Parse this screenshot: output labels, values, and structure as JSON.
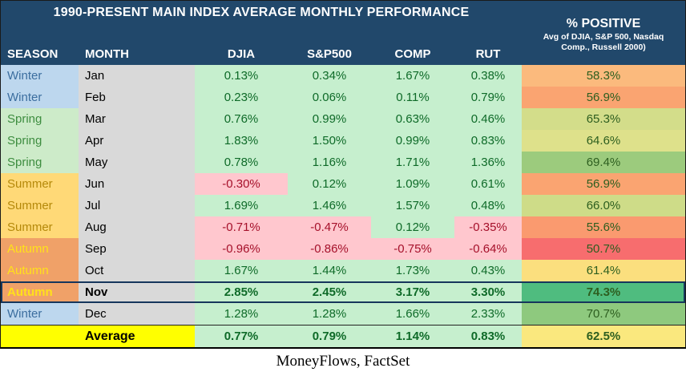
{
  "header": {
    "title": "1990-PRESENT MAIN INDEX AVERAGE MONTHLY PERFORMANCE",
    "columns": [
      "SEASON",
      "MONTH",
      "DJIA",
      "S&P500",
      "COMP",
      "RUT"
    ],
    "pct_title": "% POSITIVE",
    "pct_sub1": "Avg of DJIA, S&P 500, Nasdaq",
    "pct_sub2": "Comp., Russell 2000)"
  },
  "colors": {
    "header_bg": "#21486B",
    "winter_bg": "#BDD7EE",
    "winter_text": "#3C6E9F",
    "spring_bg": "#CDEBC9",
    "spring_text": "#3E8D40",
    "summer_bg": "#FFD977",
    "summer_text": "#B5890A",
    "autumn_bg": "#F0A168",
    "autumn_text": "#FFE11A",
    "month_bg": "#D9D9D9",
    "pos_bg": "#C6EFCE",
    "pos_text": "#0E6A28",
    "neg_bg": "#FFC7CE",
    "neg_text": "#A5102A",
    "pct_text": "#2D5E1F",
    "average_bg": "#FFFF00",
    "highlight_border": "#16365C"
  },
  "rows": [
    {
      "season": "Winter",
      "season_class": "winter",
      "month": "Jan",
      "values": [
        {
          "t": "0.13%",
          "neg": false
        },
        {
          "t": "0.34%",
          "neg": false
        },
        {
          "t": "1.67%",
          "neg": false
        },
        {
          "t": "0.38%",
          "neg": false
        }
      ],
      "pct": "58.3%",
      "pct_bg": "#FBBA7D",
      "bold": false,
      "highlight": false,
      "is_average": false
    },
    {
      "season": "Winter",
      "season_class": "winter",
      "month": "Feb",
      "values": [
        {
          "t": "0.23%",
          "neg": false
        },
        {
          "t": "0.06%",
          "neg": false
        },
        {
          "t": "0.11%",
          "neg": false
        },
        {
          "t": "0.79%",
          "neg": false
        }
      ],
      "pct": "56.9%",
      "pct_bg": "#FAA471",
      "bold": false,
      "highlight": false,
      "is_average": false
    },
    {
      "season": "Spring",
      "season_class": "spring",
      "month": "Mar",
      "values": [
        {
          "t": "0.76%",
          "neg": false
        },
        {
          "t": "0.99%",
          "neg": false
        },
        {
          "t": "0.63%",
          "neg": false
        },
        {
          "t": "0.46%",
          "neg": false
        }
      ],
      "pct": "65.3%",
      "pct_bg": "#D3DD8A",
      "bold": false,
      "highlight": false,
      "is_average": false
    },
    {
      "season": "Spring",
      "season_class": "spring",
      "month": "Apr",
      "values": [
        {
          "t": "1.83%",
          "neg": false
        },
        {
          "t": "1.50%",
          "neg": false
        },
        {
          "t": "0.99%",
          "neg": false
        },
        {
          "t": "0.83%",
          "neg": false
        }
      ],
      "pct": "64.6%",
      "pct_bg": "#DEE18B",
      "bold": false,
      "highlight": false,
      "is_average": false
    },
    {
      "season": "Spring",
      "season_class": "spring",
      "month": "May",
      "values": [
        {
          "t": "0.78%",
          "neg": false
        },
        {
          "t": "1.16%",
          "neg": false
        },
        {
          "t": "1.71%",
          "neg": false
        },
        {
          "t": "1.36%",
          "neg": false
        }
      ],
      "pct": "69.4%",
      "pct_bg": "#9CCB7D",
      "bold": false,
      "highlight": false,
      "is_average": false
    },
    {
      "season": "Summer",
      "season_class": "summer",
      "month": "Jun",
      "values": [
        {
          "t": "-0.30%",
          "neg": true
        },
        {
          "t": "0.12%",
          "neg": false
        },
        {
          "t": "1.09%",
          "neg": false
        },
        {
          "t": "0.61%",
          "neg": false
        }
      ],
      "pct": "56.9%",
      "pct_bg": "#FAA471",
      "bold": false,
      "highlight": false,
      "is_average": false
    },
    {
      "season": "Summer",
      "season_class": "summer",
      "month": "Jul",
      "values": [
        {
          "t": "1.69%",
          "neg": false
        },
        {
          "t": "1.46%",
          "neg": false
        },
        {
          "t": "1.57%",
          "neg": false
        },
        {
          "t": "0.48%",
          "neg": false
        }
      ],
      "pct": "66.0%",
      "pct_bg": "#CEDC88",
      "bold": false,
      "highlight": false,
      "is_average": false
    },
    {
      "season": "Summer",
      "season_class": "summer",
      "month": "Aug",
      "values": [
        {
          "t": "-0.71%",
          "neg": true
        },
        {
          "t": "-0.47%",
          "neg": true
        },
        {
          "t": "0.12%",
          "neg": false
        },
        {
          "t": "-0.35%",
          "neg": true
        }
      ],
      "pct": "55.6%",
      "pct_bg": "#FA9A6F",
      "bold": false,
      "highlight": false,
      "is_average": false
    },
    {
      "season": "Autumn",
      "season_class": "autumn",
      "month": "Sep",
      "values": [
        {
          "t": "-0.96%",
          "neg": true
        },
        {
          "t": "-0.86%",
          "neg": true
        },
        {
          "t": "-0.75%",
          "neg": true
        },
        {
          "t": "-0.64%",
          "neg": true
        }
      ],
      "pct": "50.7%",
      "pct_bg": "#F76D6E",
      "bold": false,
      "highlight": false,
      "is_average": false
    },
    {
      "season": "Autumn",
      "season_class": "autumn",
      "month": "Oct",
      "values": [
        {
          "t": "1.67%",
          "neg": false
        },
        {
          "t": "1.44%",
          "neg": false
        },
        {
          "t": "1.73%",
          "neg": false
        },
        {
          "t": "0.43%",
          "neg": false
        }
      ],
      "pct": "61.4%",
      "pct_bg": "#FBDF7E",
      "bold": false,
      "highlight": false,
      "is_average": false
    },
    {
      "season": "Autumn",
      "season_class": "autumn",
      "month": "Nov",
      "values": [
        {
          "t": "2.85%",
          "neg": false
        },
        {
          "t": "2.45%",
          "neg": false
        },
        {
          "t": "3.17%",
          "neg": false
        },
        {
          "t": "3.30%",
          "neg": false
        }
      ],
      "pct": "74.3%",
      "pct_bg": "#4FBC7F",
      "bold": true,
      "highlight": true,
      "is_average": false
    },
    {
      "season": "Winter",
      "season_class": "winter",
      "month": "Dec",
      "values": [
        {
          "t": "1.28%",
          "neg": false
        },
        {
          "t": "1.28%",
          "neg": false
        },
        {
          "t": "1.66%",
          "neg": false
        },
        {
          "t": "2.33%",
          "neg": false
        }
      ],
      "pct": "70.7%",
      "pct_bg": "#8EC97E",
      "bold": false,
      "highlight": false,
      "is_average": false
    },
    {
      "season": "",
      "season_class": "average",
      "month": "Average",
      "values": [
        {
          "t": "0.77%",
          "neg": false
        },
        {
          "t": "0.79%",
          "neg": false
        },
        {
          "t": "1.14%",
          "neg": false
        },
        {
          "t": "0.83%",
          "neg": false
        }
      ],
      "pct": "62.5%",
      "pct_bg": "#FAE87E",
      "bold": true,
      "highlight": false,
      "is_average": true
    }
  ],
  "footer": "MoneyFlows, FactSet",
  "chart_data": {
    "type": "table",
    "title": "1990-PRESENT MAIN INDEX AVERAGE MONTHLY PERFORMANCE",
    "columns": [
      "SEASON",
      "MONTH",
      "DJIA",
      "S&P500",
      "COMP",
      "RUT",
      "% POSITIVE (Avg of DJIA, S&P 500, Nasdaq Comp., Russell 2000)"
    ],
    "rows": [
      [
        "Winter",
        "Jan",
        0.13,
        0.34,
        1.67,
        0.38,
        58.3
      ],
      [
        "Winter",
        "Feb",
        0.23,
        0.06,
        0.11,
        0.79,
        56.9
      ],
      [
        "Spring",
        "Mar",
        0.76,
        0.99,
        0.63,
        0.46,
        65.3
      ],
      [
        "Spring",
        "Apr",
        1.83,
        1.5,
        0.99,
        0.83,
        64.6
      ],
      [
        "Spring",
        "May",
        0.78,
        1.16,
        1.71,
        1.36,
        69.4
      ],
      [
        "Summer",
        "Jun",
        -0.3,
        0.12,
        1.09,
        0.61,
        56.9
      ],
      [
        "Summer",
        "Jul",
        1.69,
        1.46,
        1.57,
        0.48,
        66.0
      ],
      [
        "Summer",
        "Aug",
        -0.71,
        -0.47,
        0.12,
        -0.35,
        55.6
      ],
      [
        "Autumn",
        "Sep",
        -0.96,
        -0.86,
        -0.75,
        -0.64,
        50.7
      ],
      [
        "Autumn",
        "Oct",
        1.67,
        1.44,
        1.73,
        0.43,
        61.4
      ],
      [
        "Autumn",
        "Nov",
        2.85,
        2.45,
        3.17,
        3.3,
        74.3
      ],
      [
        "Winter",
        "Dec",
        1.28,
        1.28,
        1.66,
        2.33,
        70.7
      ],
      [
        "",
        "Average",
        0.77,
        0.79,
        1.14,
        0.83,
        62.5
      ]
    ],
    "notes": "Monthly % performance values; units are percent. Nov row is highlighted; % POSITIVE column is a red-yellow-green heatmap (min 50.7 red, max 74.3 green).",
    "source": "MoneyFlows, FactSet"
  }
}
